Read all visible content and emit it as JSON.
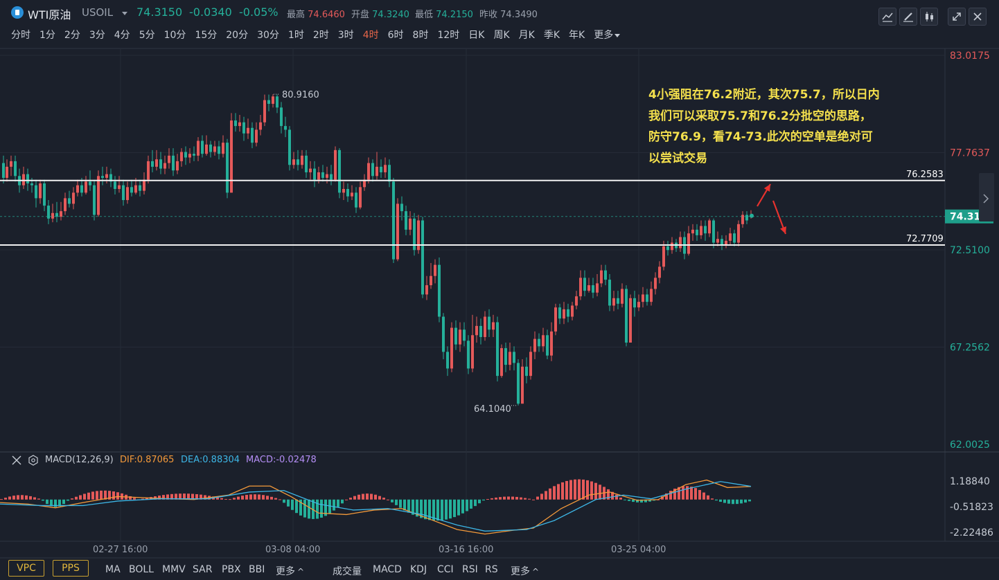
{
  "header": {
    "instrument_name": "WTI原油",
    "instrument_code": "USOIL",
    "last_price": "74.3150",
    "change": "-0.0340",
    "change_pct": "-0.05%",
    "stats": [
      {
        "label": "最高",
        "value": "74.6460",
        "color": "#e55a5a"
      },
      {
        "label": "开盘",
        "value": "74.3240",
        "color": "#25b09a"
      },
      {
        "label": "最低",
        "value": "74.2150",
        "color": "#25b09a"
      },
      {
        "label": "昨收",
        "value": "74.3490",
        "color": "#c6cbd4"
      }
    ],
    "toolbar_icons": [
      "line-chart-icon",
      "draw-pen-icon",
      "candlestick-icon",
      "fullscreen-icon",
      "close-icon"
    ]
  },
  "periods": {
    "items": [
      "分时",
      "1分",
      "2分",
      "3分",
      "4分",
      "5分",
      "10分",
      "15分",
      "20分",
      "30分",
      "1时",
      "2时",
      "3时",
      "4时",
      "6时",
      "8时",
      "12时",
      "日K",
      "周K",
      "月K",
      "季K",
      "年K",
      "更多"
    ],
    "active": "4时"
  },
  "price_axis": {
    "labels": [
      {
        "value": "83.0175",
        "color": "#e55a5a"
      },
      {
        "value": "77.7637",
        "color": "#e55a5a"
      },
      {
        "value": "72.5100",
        "color": "#25b09a"
      },
      {
        "value": "67.2562",
        "color": "#25b09a"
      },
      {
        "value": "62.0025",
        "color": "#25b09a"
      }
    ],
    "current_price_tag": "74.3150"
  },
  "levels": {
    "resistance": "76.2583",
    "support": "72.7709"
  },
  "extremes": {
    "high": "80.9160",
    "low": "64.1040"
  },
  "annotation": {
    "lines": [
      "4小强阻在76.2附近，其次75.7，所以日内",
      "我们可以采取75.7和76.2分批空的思路，",
      "防守76.9，看74-73.此次的空单是绝对可",
      "以尝试交易"
    ]
  },
  "macd": {
    "title": "MACD(12,26,9)",
    "dif": "DIF:0.87065",
    "dea": "DEA:0.88304",
    "macd": "MACD:-0.02478",
    "axis": [
      "1.18840",
      "-0.51823",
      "-2.22486"
    ],
    "colors": {
      "dif": "#f59a3a",
      "dea": "#3db6e6",
      "macd": "#b48ef5"
    }
  },
  "time_axis": [
    "02-27 16:00",
    "03-08 04:00",
    "03-16 16:00",
    "03-25 04:00"
  ],
  "bottom": {
    "pills": [
      "VPC",
      "PPS"
    ],
    "main_indicators": [
      "MA",
      "BOLL",
      "MMV",
      "SAR",
      "PBX",
      "BBI",
      "更多"
    ],
    "sub_indicators": [
      "成交量",
      "MACD",
      "KDJ",
      "CCI",
      "RSI",
      "RS",
      "更多"
    ]
  },
  "colors": {
    "up": "#e55a5a",
    "down": "#25b09a",
    "annotation": "#f4e04d",
    "background": "#1b202b"
  }
}
